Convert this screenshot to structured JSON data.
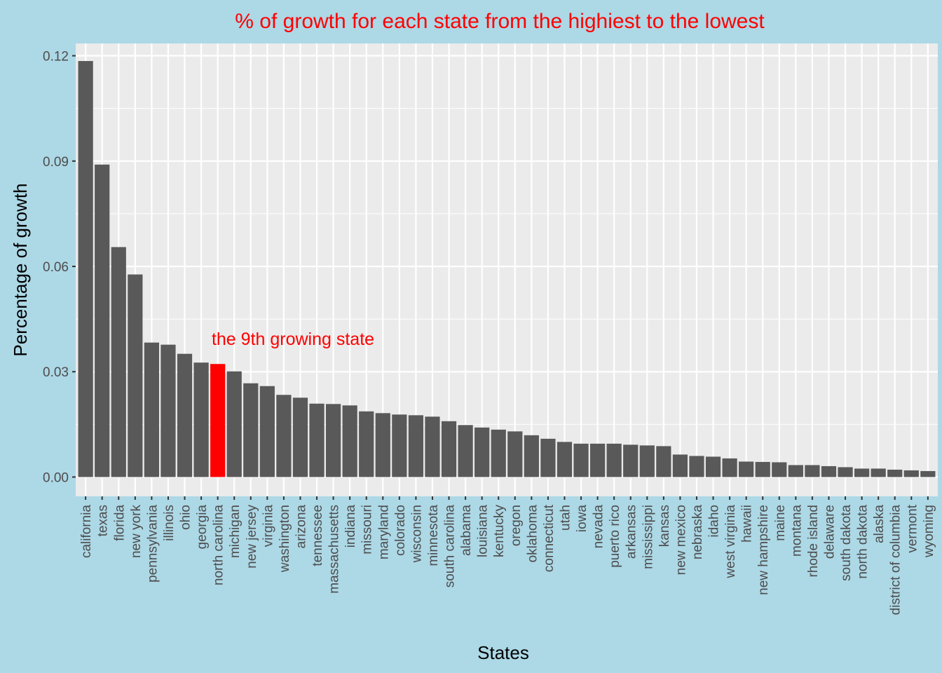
{
  "chart_data": {
    "type": "bar",
    "title": "% of growth for each state from the highiest  to the lowest",
    "xlabel": "States",
    "ylabel": "Percentage of growth",
    "ylim": [
      -0.0055,
      0.1235
    ],
    "yticks": [
      0.0,
      0.03,
      0.06,
      0.09,
      0.12
    ],
    "ytick_labels": [
      "0.00",
      "0.03",
      "0.06",
      "0.09",
      "0.12"
    ],
    "grid": true,
    "categories": [
      "california",
      "texas",
      "florida",
      "new york",
      "pennsylvania",
      "illinois",
      "ohio",
      "georgia",
      "north carolina",
      "michigan",
      "new jersey",
      "virginia",
      "washington",
      "arizona",
      "tennessee",
      "massachusetts",
      "indiana",
      "missouri",
      "maryland",
      "colorado",
      "wisconsin",
      "minnesota",
      "south carolina",
      "alabama",
      "louisiana",
      "kentucky",
      "oregon",
      "oklahoma",
      "connecticut",
      "utah",
      "iowa",
      "nevada",
      "puerto rico",
      "arkansas",
      "mississippi",
      "kansas",
      "new mexico",
      "nebraska",
      "idaho",
      "west virginia",
      "hawaii",
      "new hampshire",
      "maine",
      "montana",
      "rhode island",
      "delaware",
      "south dakota",
      "north dakota",
      "alaska",
      "district of columbia",
      "vermont",
      "wyoming"
    ],
    "values": [
      0.1185,
      0.089,
      0.0655,
      0.0577,
      0.0383,
      0.0377,
      0.0351,
      0.0326,
      0.0322,
      0.0301,
      0.0267,
      0.0259,
      0.0234,
      0.0226,
      0.0209,
      0.0208,
      0.0204,
      0.0187,
      0.0182,
      0.0178,
      0.0176,
      0.0172,
      0.0159,
      0.0148,
      0.0141,
      0.0135,
      0.013,
      0.0119,
      0.0109,
      0.01,
      0.0095,
      0.0095,
      0.0095,
      0.0092,
      0.009,
      0.0088,
      0.0064,
      0.006,
      0.0058,
      0.0053,
      0.0044,
      0.0043,
      0.0042,
      0.0034,
      0.0034,
      0.0031,
      0.0028,
      0.0024,
      0.0024,
      0.0021,
      0.0019,
      0.0017
    ],
    "highlight_index": 8,
    "colors": {
      "bar": "#595959",
      "highlight": "#ff0000",
      "panel": "#ebebeb",
      "background": "#add8e6",
      "grid": "#ffffff",
      "title": "#ff0000",
      "annotation": "#ff0000"
    },
    "annotation": {
      "text": "the 9th growing state",
      "target": "north carolina"
    }
  }
}
